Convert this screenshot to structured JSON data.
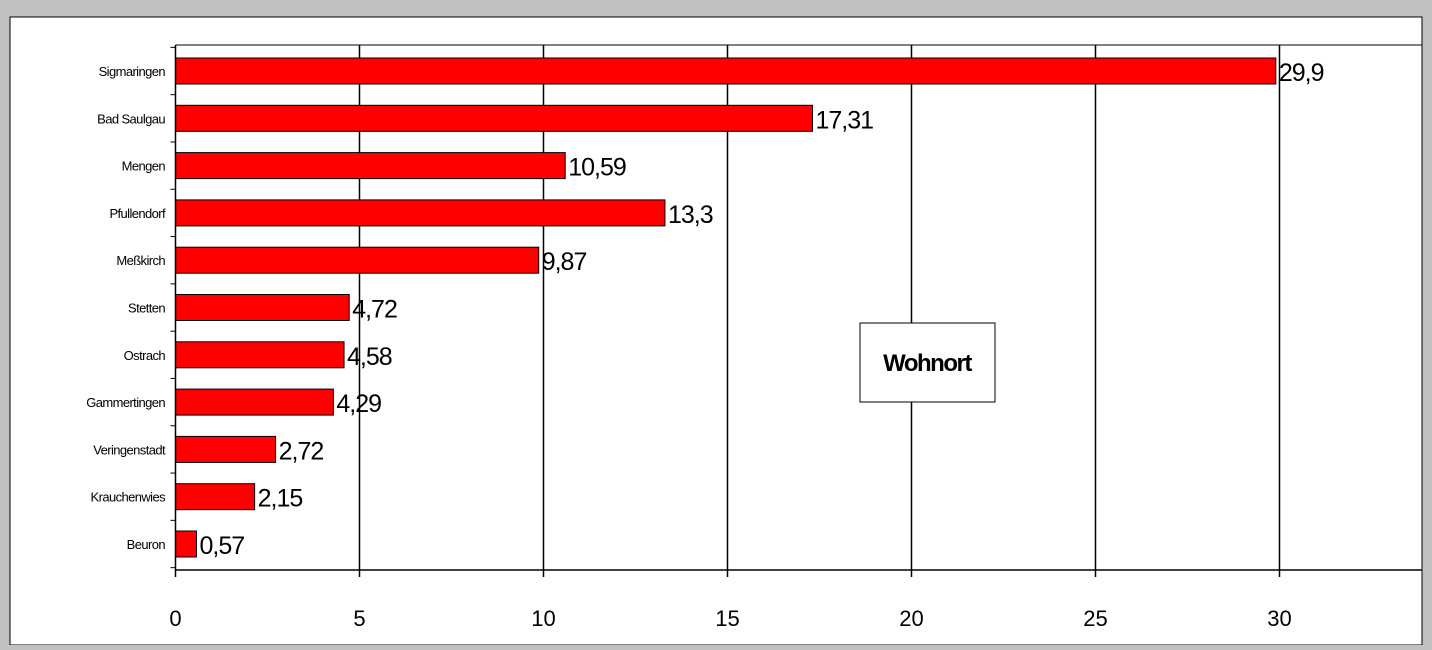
{
  "colors": {
    "background": "#c0c0c0",
    "plot_area": "#ffffff",
    "bar_fill": "#ff0000",
    "bar_stroke": "#000000",
    "gridline": "#000000"
  },
  "chart_data": {
    "type": "bar",
    "orientation": "horizontal",
    "title": "",
    "xlabel": "",
    "ylabel": "",
    "categories": [
      "Sigmaringen",
      "Bad Saulgau",
      "Mengen",
      "Pfullendorf",
      "Meßkirch",
      "Stetten",
      "Ostrach",
      "Gammertingen",
      "Veringenstadt",
      "Krauchenwies",
      "Beuron"
    ],
    "values": [
      29.9,
      17.31,
      10.59,
      13.3,
      9.87,
      4.72,
      4.58,
      4.29,
      2.72,
      2.15,
      0.57
    ],
    "data_labels": [
      "29,9",
      "17,31",
      "10,59",
      "13,3",
      "9,87",
      "4,72",
      "4,58",
      "4,29",
      "2,72",
      "2,15",
      "0,57"
    ],
    "xlim": [
      0,
      34.2
    ],
    "xticks": [
      0,
      5,
      10,
      15,
      20,
      25,
      30
    ],
    "xtick_labels": [
      "0",
      "5",
      "10",
      "15",
      "20",
      "25",
      "30"
    ],
    "grid": "vertical",
    "legend": "none",
    "annotation": "Wohnort"
  }
}
